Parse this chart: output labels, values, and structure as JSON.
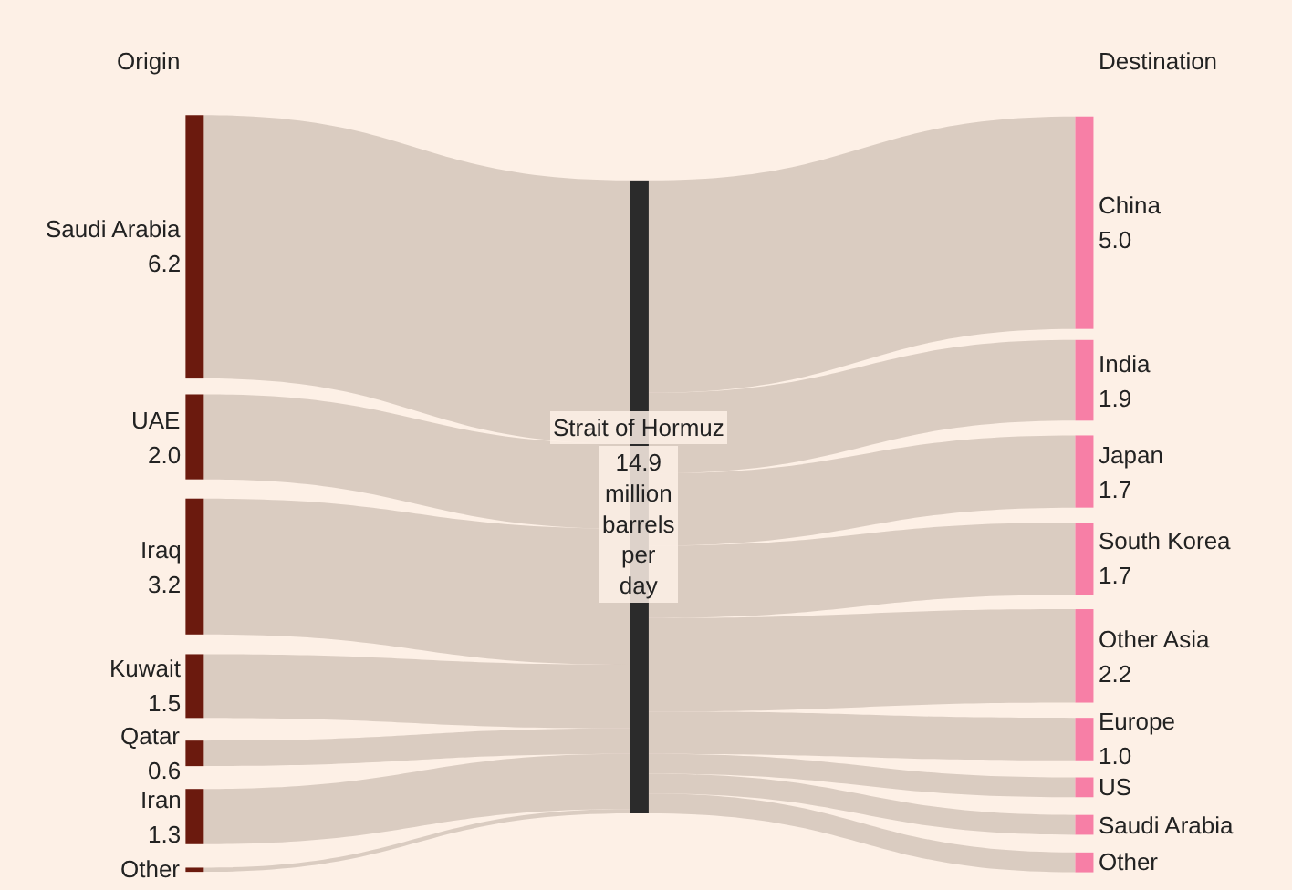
{
  "chart_data": {
    "type": "other",
    "annotations": [
      "Origin",
      "Destination"
    ],
    "categories": [
      "Saudi Arabia",
      "UAE",
      "Iraq",
      "Kuwait",
      "Qatar",
      "Iran",
      "Other",
      "Strait of Hormuz",
      "China",
      "India",
      "Japan",
      "South Korea",
      "Other Asia",
      "Europe",
      "US",
      "Saudi Arabia",
      "Other"
    ],
    "series": [
      {
        "values": [
          6.2,
          2.0,
          3.2,
          1.5,
          0.6,
          1.3,
          null,
          null,
          null,
          null,
          null,
          null,
          null,
          null,
          null,
          null,
          null
        ],
        "value_labels": [
          "6.2",
          "2.0",
          "3.2",
          "1.5",
          "0.6",
          "1.3",
          null,
          null,
          null,
          null,
          null,
          null,
          null,
          null,
          null,
          null,
          null
        ],
        "color": "#6b1a0e"
      },
      {
        "values": [
          null,
          null,
          null,
          null,
          null,
          null,
          null,
          14.9,
          null,
          null,
          null,
          null,
          null,
          null,
          null,
          null,
          null
        ],
        "value_labels": [
          null,
          null,
          null,
          null,
          null,
          null,
          null,
          "14.9 million barrels per day",
          null,
          null,
          null,
          null,
          null,
          null,
          null,
          null,
          null
        ],
        "color": "#2b2b2b"
      },
      {
        "values": [
          null,
          null,
          null,
          null,
          null,
          null,
          null,
          null,
          5.0,
          1.9,
          1.7,
          1.7,
          2.2,
          1.0,
          null,
          null,
          null
        ],
        "value_labels": [
          null,
          null,
          null,
          null,
          null,
          null,
          null,
          null,
          "5.0",
          "1.9",
          "1.7",
          "1.7",
          "2.2",
          "1.0",
          null,
          null,
          null
        ],
        "color": "#f77fa6"
      }
    ]
  }
}
